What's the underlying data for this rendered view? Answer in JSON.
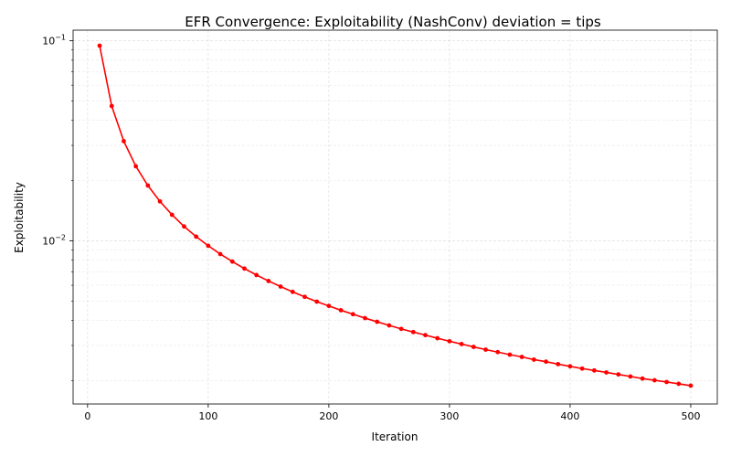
{
  "chart_data": {
    "type": "line",
    "title": "EFR Convergence: Exploitability (NashConv) deviation = tips",
    "xlabel": "Iteration",
    "ylabel": "Exploitability",
    "xlim": [
      -12,
      522
    ],
    "ylim": [
      0.00153,
      0.113
    ],
    "yscale": "log",
    "grid": true,
    "x_ticks": [
      0,
      100,
      200,
      300,
      400,
      500
    ],
    "x_tick_labels": [
      "0",
      "100",
      "200",
      "300",
      "400",
      "500"
    ],
    "y_ticks": [
      0.01,
      0.1
    ],
    "y_tick_labels": [
      {
        "base": "10",
        "exp": "−2"
      },
      {
        "base": "10",
        "exp": "−1"
      }
    ],
    "y_minor_ticks": [
      0.002,
      0.003,
      0.004,
      0.005,
      0.006,
      0.007,
      0.008,
      0.009,
      0.02,
      0.03,
      0.04,
      0.05,
      0.06,
      0.07,
      0.08,
      0.09
    ],
    "series": [
      {
        "color": "#ff0000",
        "marker": "circle",
        "x": [
          10,
          20,
          30,
          40,
          50,
          60,
          70,
          80,
          90,
          100,
          110,
          120,
          130,
          140,
          150,
          160,
          170,
          180,
          190,
          200,
          210,
          220,
          230,
          240,
          250,
          260,
          270,
          280,
          290,
          300,
          310,
          320,
          330,
          340,
          350,
          360,
          370,
          380,
          390,
          400,
          410,
          420,
          430,
          440,
          450,
          460,
          470,
          480,
          490,
          500
        ],
        "y": [
          0.0945,
          0.0472,
          0.0315,
          0.0236,
          0.0189,
          0.01575,
          0.0135,
          0.0118,
          0.0105,
          0.00945,
          0.00859,
          0.00788,
          0.00727,
          0.00675,
          0.0063,
          0.00591,
          0.00556,
          0.00525,
          0.00497,
          0.00473,
          0.0045,
          0.0043,
          0.00411,
          0.00394,
          0.00378,
          0.00363,
          0.0035,
          0.00338,
          0.00326,
          0.00315,
          0.00305,
          0.00295,
          0.00286,
          0.00278,
          0.0027,
          0.00263,
          0.00255,
          0.00249,
          0.00242,
          0.00236,
          0.0023,
          0.00225,
          0.0022,
          0.00215,
          0.0021,
          0.00205,
          0.00201,
          0.00197,
          0.00193,
          0.00189
        ]
      }
    ]
  }
}
